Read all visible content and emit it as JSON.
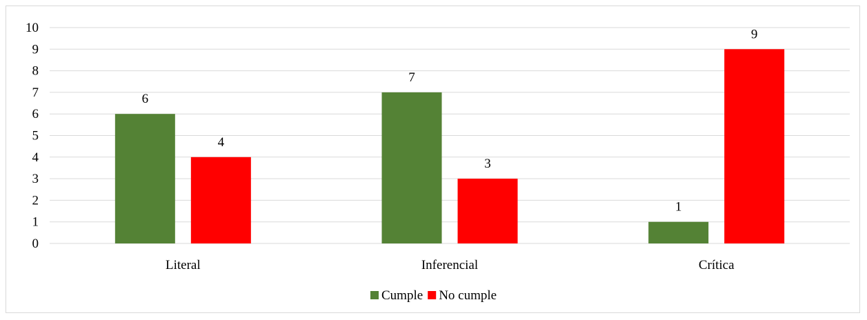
{
  "chart_data": {
    "type": "bar",
    "categories": [
      "Literal",
      "Inferencial",
      "Crítica"
    ],
    "series": [
      {
        "name": "Cumple",
        "color": "#548235",
        "values": [
          6,
          7,
          1
        ]
      },
      {
        "name": "No cumple",
        "color": "#ff0000",
        "values": [
          4,
          3,
          9
        ]
      }
    ],
    "ylim": [
      0,
      10
    ],
    "yticks": [
      0,
      1,
      2,
      3,
      4,
      5,
      6,
      7,
      8,
      9,
      10
    ],
    "grid": true,
    "data_labels": true,
    "legend_position": "bottom",
    "title": "",
    "xlabel": "",
    "ylabel": ""
  }
}
